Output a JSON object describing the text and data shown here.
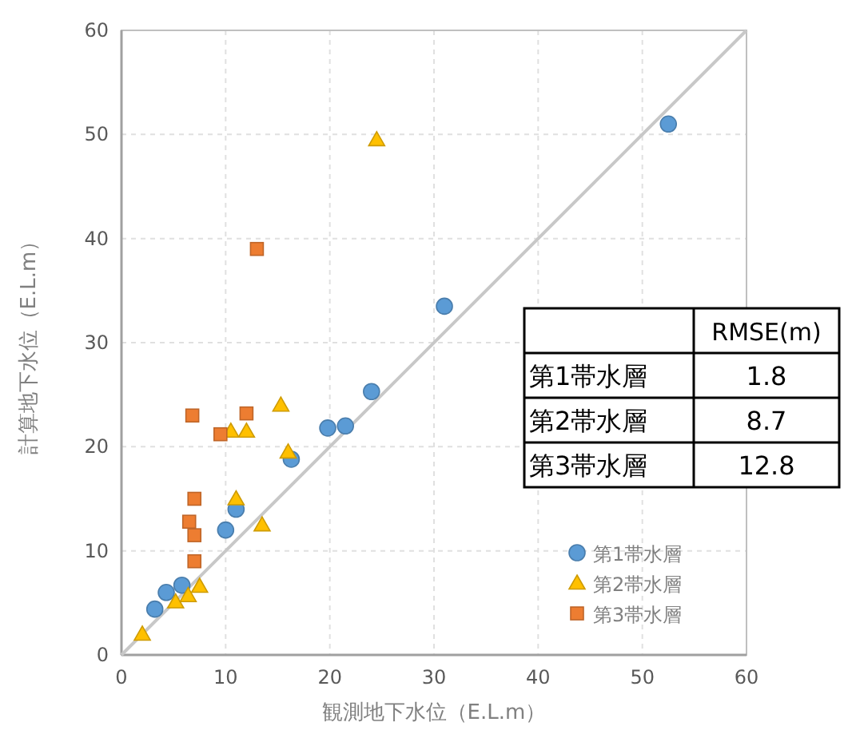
{
  "chart_data": {
    "type": "scatter",
    "xlabel": "観測地下水位（E.L.m）",
    "ylabel": "計算地下水位（E.L.m）",
    "xlim": [
      0,
      60
    ],
    "ylim": [
      0,
      60
    ],
    "xticks": [
      0,
      10,
      20,
      30,
      40,
      50,
      60
    ],
    "yticks": [
      0,
      10,
      20,
      30,
      40,
      50,
      60
    ],
    "grid": true,
    "legend": "bottom right",
    "annotations": [
      "RMSE(m)",
      "第1帯水層",
      "1.8",
      "第2帯水層",
      "8.7",
      "第3帯水層",
      "12.8"
    ],
    "series": [
      {
        "type": "line",
        "color": "#c8c8c8",
        "marker": "none",
        "line_style": "solid",
        "x": [
          0,
          60
        ],
        "values": [
          0,
          60
        ]
      },
      {
        "name": "第1帯水層",
        "color": "#5b9bd5",
        "marker": "circle",
        "x": [
          52.5,
          31,
          24,
          21.5,
          19.8,
          16.3,
          11,
          10,
          3.2,
          4.3,
          5.8
        ],
        "values": [
          51,
          33.5,
          25.3,
          22,
          21.8,
          18.8,
          14,
          12,
          4.4,
          6,
          6.7
        ]
      },
      {
        "name": "第2帯水層",
        "color": "#ffc000",
        "marker": "triangle",
        "x": [
          24.5,
          15.3,
          12,
          10.5,
          16,
          11,
          13.5,
          2,
          7.5,
          5.2,
          6.4
        ],
        "values": [
          49.5,
          24,
          21.5,
          21.5,
          19.5,
          15,
          12.5,
          2,
          6.6,
          5.1,
          5.7
        ]
      },
      {
        "name": "第3帯水層",
        "color": "#ed7d31",
        "marker": "square",
        "x": [
          13,
          12,
          6.8,
          9.5,
          7,
          6.5,
          7,
          7
        ],
        "values": [
          39,
          23.2,
          23,
          21.2,
          15,
          12.8,
          11.5,
          9
        ]
      }
    ]
  }
}
